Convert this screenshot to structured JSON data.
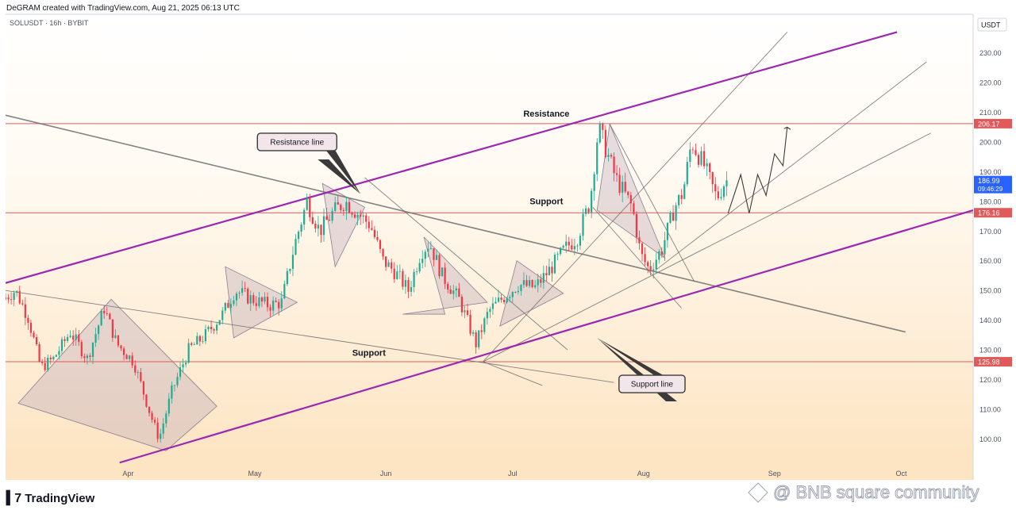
{
  "header": {
    "text": "DeGRAM created with TradingView.com, Aug 21, 2025 06:13 UTC"
  },
  "symbol": {
    "text": "SOLUSDT · 16h · BYBIT"
  },
  "footer": {
    "brand": "TradingView",
    "logo_icon": "tradingview-logo-icon"
  },
  "watermark": {
    "text": "@ BNB square community",
    "icon": "bnb-diamond-icon"
  },
  "colors": {
    "up": "#22ab94",
    "down": "#f23645",
    "channel": "#9c27b0",
    "level": "#e05a5a",
    "trend": "#6d6d6d",
    "triangle_fill": "#b8a2b8",
    "price_box": "#2962ff"
  },
  "chart_data": {
    "type": "candlestick",
    "quote_currency": "USDT",
    "y_ticks": [
      100,
      110,
      120,
      130,
      140,
      150,
      160,
      170,
      180,
      190,
      200,
      210,
      220,
      230
    ],
    "y_tick_labels": [
      "100.00",
      "110.00",
      "120.00",
      "130.00",
      "140.00",
      "150.00",
      "160.00",
      "170.00",
      "180.00",
      "190.00",
      "200.00",
      "210.00",
      "220.00",
      "230.00"
    ],
    "ylim": [
      91,
      243
    ],
    "x_labels": [
      {
        "label": "Apr",
        "date": "2025-04-01"
      },
      {
        "label": "May",
        "date": "2025-05-01"
      },
      {
        "label": "Jun",
        "date": "2025-06-01"
      },
      {
        "label": "Jul",
        "date": "2025-07-01"
      },
      {
        "label": "Aug",
        "date": "2025-08-01"
      },
      {
        "label": "Sep",
        "date": "2025-09-01"
      },
      {
        "label": "Oct",
        "date": "2025-10-01"
      }
    ],
    "xlim": [
      "2025-03-03",
      "2025-10-18"
    ],
    "price_path": [
      [
        "2025-03-03",
        147
      ],
      [
        "2025-03-06",
        150
      ],
      [
        "2025-03-09",
        141
      ],
      [
        "2025-03-12",
        124
      ],
      [
        "2025-03-15",
        127
      ],
      [
        "2025-03-19",
        136
      ],
      [
        "2025-03-23",
        127
      ],
      [
        "2025-03-27",
        144
      ],
      [
        "2025-03-30",
        132
      ],
      [
        "2025-04-03",
        126
      ],
      [
        "2025-04-07",
        108
      ],
      [
        "2025-04-09",
        100
      ],
      [
        "2025-04-12",
        116
      ],
      [
        "2025-04-16",
        130
      ],
      [
        "2025-04-20",
        135
      ],
      [
        "2025-04-24",
        142
      ],
      [
        "2025-04-27",
        150
      ],
      [
        "2025-05-01",
        147
      ],
      [
        "2025-05-05",
        145
      ],
      [
        "2025-05-08",
        146
      ],
      [
        "2025-05-11",
        165
      ],
      [
        "2025-05-14",
        180
      ],
      [
        "2025-05-17",
        170
      ],
      [
        "2025-05-20",
        176
      ],
      [
        "2025-05-23",
        180
      ],
      [
        "2025-05-26",
        176
      ],
      [
        "2025-05-29",
        172
      ],
      [
        "2025-06-01",
        160
      ],
      [
        "2025-06-04",
        156
      ],
      [
        "2025-06-07",
        150
      ],
      [
        "2025-06-10",
        163
      ],
      [
        "2025-06-12",
        166
      ],
      [
        "2025-06-15",
        155
      ],
      [
        "2025-06-19",
        147
      ],
      [
        "2025-06-23",
        132
      ],
      [
        "2025-06-26",
        143
      ],
      [
        "2025-06-29",
        147
      ],
      [
        "2025-07-03",
        152
      ],
      [
        "2025-07-07",
        151
      ],
      [
        "2025-07-11",
        158
      ],
      [
        "2025-07-14",
        164
      ],
      [
        "2025-07-17",
        168
      ],
      [
        "2025-07-20",
        180
      ],
      [
        "2025-07-22",
        205
      ],
      [
        "2025-07-26",
        188
      ],
      [
        "2025-07-30",
        178
      ],
      [
        "2025-08-01",
        162
      ],
      [
        "2025-08-03",
        157
      ],
      [
        "2025-08-06",
        164
      ],
      [
        "2025-08-09",
        178
      ],
      [
        "2025-08-11",
        183
      ],
      [
        "2025-08-13",
        200
      ],
      [
        "2025-08-16",
        192
      ],
      [
        "2025-08-19",
        181
      ],
      [
        "2025-08-21",
        187
      ]
    ],
    "price_labels": [
      {
        "value": 206.17,
        "text": "206.17",
        "color": "#e05a5a"
      },
      {
        "value": 186.99,
        "text": "186.99",
        "subtext": "09:46:29",
        "color": "#2962ff"
      },
      {
        "value": 176.16,
        "text": "176.16",
        "color": "#e05a5a"
      },
      {
        "value": 125.98,
        "text": "125.98",
        "color": "#e05a5a"
      }
    ],
    "horizontal_levels": [
      206.17,
      176.16,
      125.98
    ],
    "channel_lines": [
      {
        "from": [
          "2025-03-03",
          152.5
        ],
        "to": [
          "2025-09-30",
          237
        ]
      },
      {
        "from": [
          "2025-03-30",
          92
        ],
        "to": [
          "2025-10-18",
          177
        ]
      }
    ],
    "trend_lines": [
      {
        "from": [
          "2025-03-03",
          209
        ],
        "to": [
          "2025-10-02",
          136
        ]
      },
      {
        "from": [
          "2025-03-03",
          150
        ],
        "to": [
          "2025-07-25",
          119
        ]
      },
      {
        "from": [
          "2025-06-24",
          126
        ],
        "to": [
          "2025-09-04",
          237
        ]
      },
      {
        "from": [
          "2025-06-24",
          126
        ],
        "to": [
          "2025-10-08",
          203
        ]
      },
      {
        "from": [
          "2025-05-27",
          188
        ],
        "to": [
          "2025-07-14",
          130
        ]
      },
      {
        "from": [
          "2025-06-24",
          126
        ],
        "to": [
          "2025-07-08",
          118
        ]
      },
      {
        "from": [
          "2025-07-24",
          206
        ],
        "to": [
          "2025-08-13",
          153
        ]
      },
      {
        "from": [
          "2025-07-20",
          178
        ],
        "to": [
          "2025-08-10",
          144
        ]
      },
      {
        "from": [
          "2025-08-04",
          157
        ],
        "to": [
          "2025-10-07",
          227
        ]
      }
    ],
    "triangles": [
      [
        [
          "2025-03-06",
          112
        ],
        [
          "2025-03-28",
          147
        ],
        [
          "2025-04-22",
          111
        ],
        [
          "2025-04-10",
          96
        ]
      ],
      [
        [
          "2025-04-24",
          158
        ],
        [
          "2025-05-11",
          146
        ],
        [
          "2025-04-26",
          134
        ]
      ],
      [
        [
          "2025-05-17",
          186
        ],
        [
          "2025-05-27",
          178
        ],
        [
          "2025-05-20",
          158
        ]
      ],
      [
        [
          "2025-06-10",
          168
        ],
        [
          "2025-06-25",
          146
        ],
        [
          "2025-06-05",
          142
        ],
        [
          "2025-06-15",
          142
        ]
      ],
      [
        [
          "2025-07-02",
          160
        ],
        [
          "2025-07-13",
          149
        ],
        [
          "2025-06-28",
          138
        ]
      ],
      [
        [
          "2025-07-24",
          206
        ],
        [
          "2025-08-06",
          161
        ],
        [
          "2025-07-21",
          177
        ]
      ]
    ],
    "projection_path": [
      [
        "2025-08-21",
        176
      ],
      [
        "2025-08-24",
        189
      ],
      [
        "2025-08-26",
        176
      ],
      [
        "2025-08-28",
        189
      ],
      [
        "2025-08-30",
        182
      ],
      [
        "2025-09-01",
        196
      ],
      [
        "2025-09-03",
        192
      ],
      [
        "2025-09-04",
        205
      ]
    ],
    "annotations": [
      {
        "id": "resistance",
        "text": "Resistance",
        "at": [
          "2025-07-09",
          208.5
        ],
        "boxed": false
      },
      {
        "id": "support-mid",
        "text": "Support",
        "at": [
          "2025-07-09",
          179
        ],
        "boxed": false
      },
      {
        "id": "support-low",
        "text": "Support",
        "at": [
          "2025-05-28",
          128
        ],
        "boxed": false
      },
      {
        "id": "resistance-line",
        "text": "Resistance line",
        "at": [
          "2025-05-11",
          200
        ],
        "boxed": true,
        "pointer": [
          "2025-05-26",
          182.5
        ]
      },
      {
        "id": "support-line",
        "text": "Support line",
        "at": [
          "2025-08-03",
          118.5
        ],
        "boxed": true,
        "pointer": [
          "2025-07-21",
          134
        ]
      }
    ]
  }
}
